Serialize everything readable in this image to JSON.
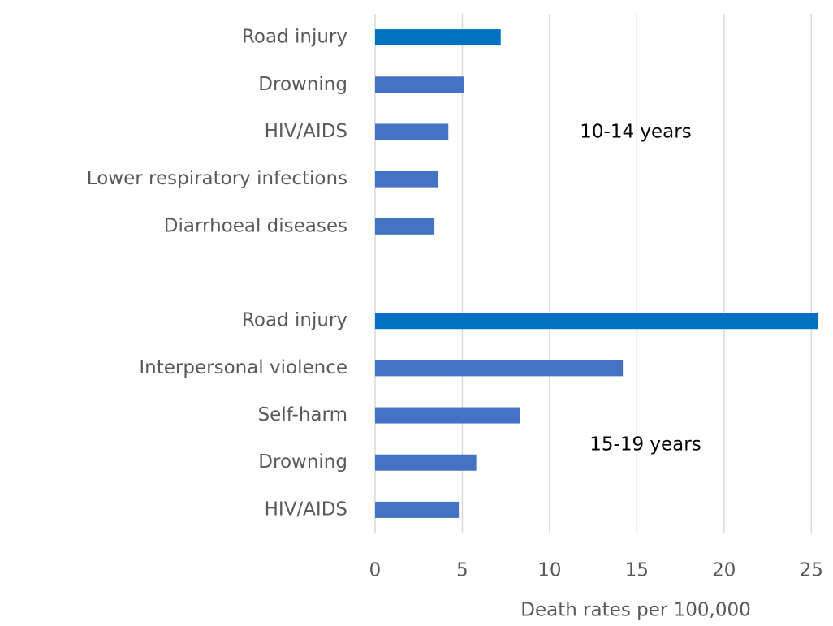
{
  "chart_data": {
    "type": "barh",
    "categories": [
      "Road injury",
      "Drowning",
      "HIV/AIDS",
      "Lower respiratory infections",
      "Diarrhoeal diseases",
      null,
      "Road injury",
      "Interpersonal violence",
      "Self-harm",
      "Drowning",
      "HIV/AIDS"
    ],
    "values": [
      7.2,
      5.1,
      4.2,
      3.6,
      3.4,
      null,
      25.4,
      14.2,
      8.3,
      5.8,
      4.8
    ],
    "colors": [
      "#0070c0",
      "#4472c4",
      "#4472c4",
      "#4472c4",
      "#4472c4",
      null,
      "#0070c0",
      "#4472c4",
      "#4472c4",
      "#4472c4",
      "#4472c4"
    ],
    "annotations": [
      "10-14 years",
      "15-19 years"
    ],
    "xlabel": "Death rates per 100,000",
    "xlim": [
      0,
      25.5
    ],
    "xticks": [
      0,
      5,
      10,
      15,
      20,
      25
    ],
    "grid": true
  }
}
